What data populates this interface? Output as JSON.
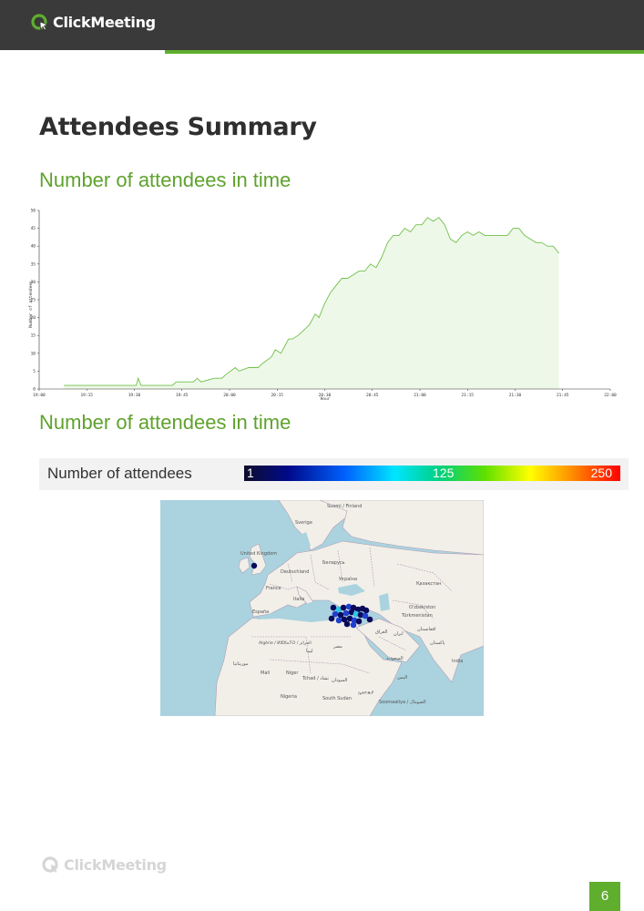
{
  "header": {
    "logo_text": "ClickMeeting",
    "logo_icon": "clickmeeting-logo-icon",
    "accent_color": "#5fae2e"
  },
  "page_title": "Attendees Summary",
  "sections": [
    {
      "title": "Number of attendees in time"
    },
    {
      "title": "Number of attendees in time"
    }
  ],
  "chart_data": {
    "type": "area",
    "xlabel": "Hour",
    "ylabel": "Number of attendees",
    "ylim": [
      0,
      50
    ],
    "yticks": [
      0,
      5,
      10,
      15,
      20,
      25,
      30,
      35,
      40,
      45,
      50
    ],
    "xlim": [
      0,
      60
    ],
    "xticks": [
      {
        "v": 0,
        "label": "19:00"
      },
      {
        "v": 5,
        "label": "19:15"
      },
      {
        "v": 10,
        "label": "19:30"
      },
      {
        "v": 15,
        "label": "19:45"
      },
      {
        "v": 20,
        "label": "20:00"
      },
      {
        "v": 25,
        "label": "20:15"
      },
      {
        "v": 30,
        "label": "20:30"
      },
      {
        "v": 35,
        "label": "20:45"
      },
      {
        "v": 40,
        "label": "21:00"
      },
      {
        "v": 45,
        "label": "21:15"
      },
      {
        "v": 50,
        "label": "21:30"
      },
      {
        "v": 55,
        "label": "21:45"
      },
      {
        "v": 60,
        "label": "22:00"
      }
    ],
    "x": [
      2.6,
      10.2,
      10.4,
      10.7,
      11.0,
      14.0,
      14.4,
      16.2,
      16.6,
      17.0,
      18.4,
      19.2,
      19.6,
      20.6,
      21.0,
      22.0,
      23.0,
      23.4,
      24.4,
      24.8,
      25.4,
      25.8,
      26.2,
      26.6,
      27.2,
      28.0,
      28.4,
      29.0,
      29.4,
      30.0,
      30.6,
      31.2,
      31.8,
      32.4,
      33.0,
      33.6,
      34.2,
      34.8,
      35.4,
      36.0,
      36.6,
      37.2,
      37.8,
      38.4,
      39.0,
      39.6,
      40.2,
      40.8,
      41.4,
      42.0,
      42.6,
      43.2,
      43.8,
      44.4,
      45.0,
      45.6,
      46.2,
      46.8,
      47.4,
      48.0,
      48.6,
      49.2,
      49.8,
      50.4,
      51.0,
      51.6,
      52.2,
      52.8,
      53.4,
      54.0,
      54.6
    ],
    "y": [
      1,
      1,
      3,
      1,
      1,
      1,
      2,
      2,
      3,
      2,
      3,
      3,
      4,
      6,
      5,
      6,
      6,
      7,
      9,
      11,
      10,
      12,
      14,
      14,
      15,
      17,
      18,
      21,
      20,
      24,
      27,
      29,
      31,
      31,
      32,
      33,
      33,
      35,
      34,
      37,
      41,
      43,
      43,
      45,
      44,
      46,
      46,
      48,
      47,
      48,
      46,
      42,
      41,
      43,
      44,
      43,
      44,
      43,
      43,
      43,
      43,
      43,
      45,
      45,
      43,
      42,
      41,
      41,
      40,
      40,
      38
    ],
    "line_color": "#6fc04a",
    "fill_color": "#eef8e8",
    "grid": false
  },
  "legend": {
    "label": "Number of attendees",
    "min": "1",
    "mid": "125",
    "max": "250"
  },
  "map": {
    "colors": {
      "water": "#aad3df",
      "land": "#f2efe9",
      "border": "#b49cb2",
      "dot_dark": "#0a0a5a",
      "dot_blue": "#1f3fd0",
      "dot_cyan": "#2bc8e8"
    },
    "labels": [
      "Suomi / Finland",
      "Sverige",
      "United Kingdom",
      "Deutschland",
      "Беларусь",
      "Україна",
      "France",
      "Italia",
      "España",
      "Қазақстан",
      "O'zbekiston",
      "Türkmenistan",
      "ایران",
      "افغانستان",
      "پاکستان",
      "India",
      "العراق",
      "Algérie / ⵍⵣⵣⴰⵢⵔ / الجزائر",
      "ليبيا",
      "مصر",
      "السعودية",
      "اليمن",
      "Mali",
      "Niger",
      "Tchad / تشاد",
      "السودان",
      "Nigeria",
      "South Sudan",
      "ኢትዮጵያ",
      "Soomaaliya / الصومال",
      "موريتانيا"
    ]
  },
  "page_number": "6"
}
